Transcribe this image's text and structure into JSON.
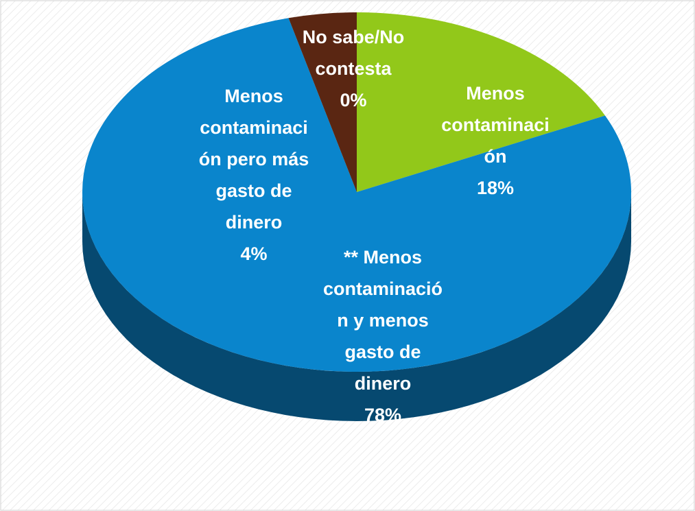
{
  "chart_data": {
    "type": "pie",
    "style": "3d",
    "categories": [
      "Menos contaminación",
      "** Menos contaminación y menos gasto de dinero",
      "Menos contaminación pero más gasto de dinero",
      "No sabe/No contesta"
    ],
    "values": [
      18,
      78,
      4,
      0
    ],
    "value_labels": [
      "18%",
      "78%",
      "4%",
      "0%"
    ],
    "colors": [
      "#92c81a",
      "#0a85cc",
      "#5a2612",
      "#8a4a2a"
    ]
  }
}
